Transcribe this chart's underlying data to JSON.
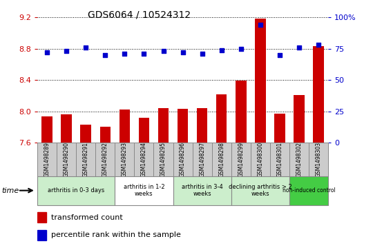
{
  "title": "GDS6064 / 10524312",
  "samples": [
    "GSM1498289",
    "GSM1498290",
    "GSM1498291",
    "GSM1498292",
    "GSM1498293",
    "GSM1498294",
    "GSM1498295",
    "GSM1498296",
    "GSM1498297",
    "GSM1498298",
    "GSM1498299",
    "GSM1498300",
    "GSM1498301",
    "GSM1498302",
    "GSM1498303"
  ],
  "bar_values": [
    7.93,
    7.96,
    7.83,
    7.8,
    8.02,
    7.92,
    8.04,
    8.03,
    8.04,
    8.22,
    8.39,
    9.19,
    7.97,
    8.21,
    8.83
  ],
  "dot_values": [
    72,
    73,
    76,
    70,
    71,
    71,
    73,
    72,
    71,
    74,
    75,
    94,
    70,
    76,
    78
  ],
  "ylim": [
    7.6,
    9.2
  ],
  "y2lim": [
    0,
    100
  ],
  "yticks": [
    7.6,
    8.0,
    8.4,
    8.8,
    9.2
  ],
  "y2ticks": [
    0,
    25,
    50,
    75,
    100
  ],
  "bar_color": "#cc0000",
  "dot_color": "#0000cc",
  "bar_bottom": 7.6,
  "groups": [
    {
      "label": "arthritis in 0-3 days",
      "start": 0,
      "end": 4,
      "color": "#cceecc"
    },
    {
      "label": "arthritis in 1-2\nweeks",
      "start": 4,
      "end": 7,
      "color": "#ffffff"
    },
    {
      "label": "arthritis in 3-4\nweeks",
      "start": 7,
      "end": 10,
      "color": "#cceecc"
    },
    {
      "label": "declining arthritis > 2\nweeks",
      "start": 10,
      "end": 13,
      "color": "#cceecc"
    },
    {
      "label": "non-induced control",
      "start": 13,
      "end": 15,
      "color": "#44cc44"
    }
  ],
  "legend_bar_label": "transformed count",
  "legend_dot_label": "percentile rank within the sample",
  "time_label": "time",
  "tick_color_left": "#cc0000",
  "tick_color_right": "#0000cc",
  "sample_box_color": "#cccccc",
  "sample_box_edge": "#888888"
}
